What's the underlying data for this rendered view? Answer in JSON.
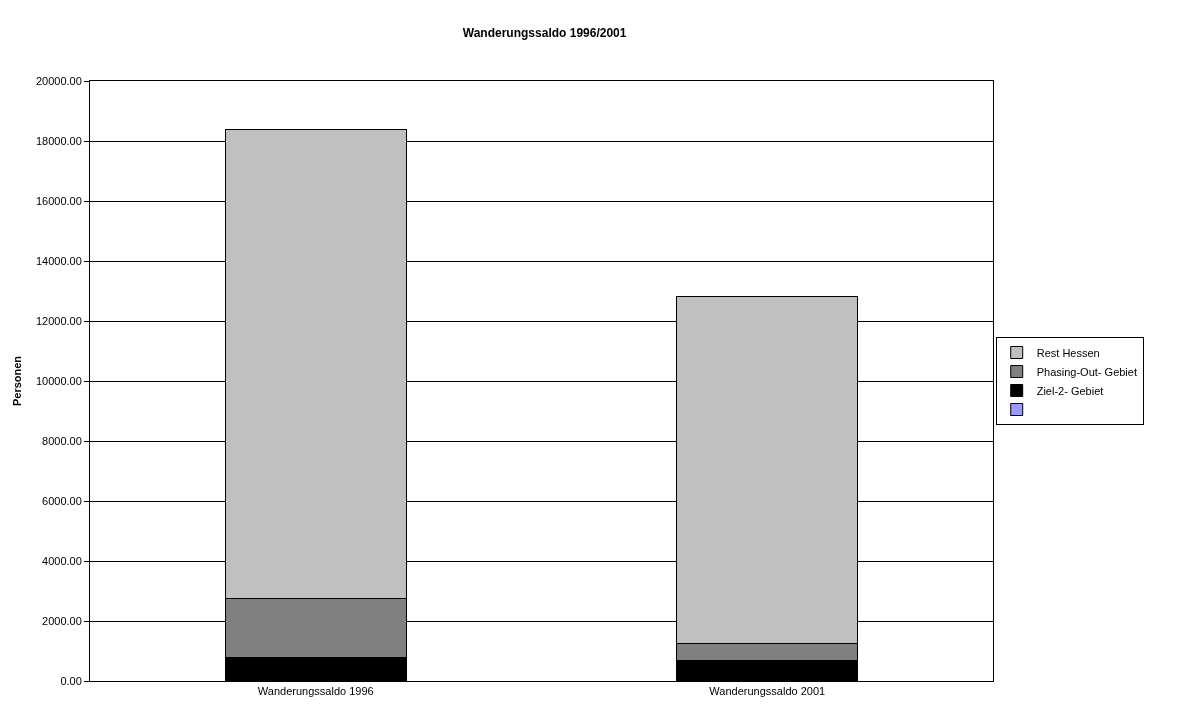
{
  "chart_data": {
    "type": "bar",
    "title": "Wanderungssaldo 1996/2001",
    "ylabel": "Personen",
    "categories": [
      "Wanderungssaldo 1996",
      "Wanderungssaldo 2001"
    ],
    "stacked": true,
    "series": [
      {
        "color": "#9999ff",
        "values": [
          0,
          0
        ]
      },
      {
        "name": "Ziel-2- Gebiet",
        "color": "#000000",
        "values": [
          780,
          700
        ]
      },
      {
        "name": "Phasing-Out- Gebiet",
        "color": "#808080",
        "values": [
          1970,
          560
        ]
      },
      {
        "name": "Rest Hessen",
        "color": "#c0c0c0",
        "values": [
          15620,
          11560
        ]
      }
    ],
    "ylim": [
      0,
      20000
    ],
    "yticks": [
      {
        "value": 0,
        "label": "0.00"
      },
      {
        "value": 2000,
        "label": "2000.00"
      },
      {
        "value": 4000,
        "label": "4000.00"
      },
      {
        "value": 6000,
        "label": "6000.00"
      },
      {
        "value": 8000,
        "label": "8000.00"
      },
      {
        "value": 10000,
        "label": "10000.00"
      },
      {
        "value": 12000,
        "label": "12000.00"
      },
      {
        "value": 14000,
        "label": "14000.00"
      },
      {
        "value": 16000,
        "label": "16000.00"
      },
      {
        "value": 18000,
        "label": "18000.00"
      },
      {
        "value": 20000,
        "label": "20000.00"
      }
    ],
    "grid": "y",
    "legend": "right"
  }
}
